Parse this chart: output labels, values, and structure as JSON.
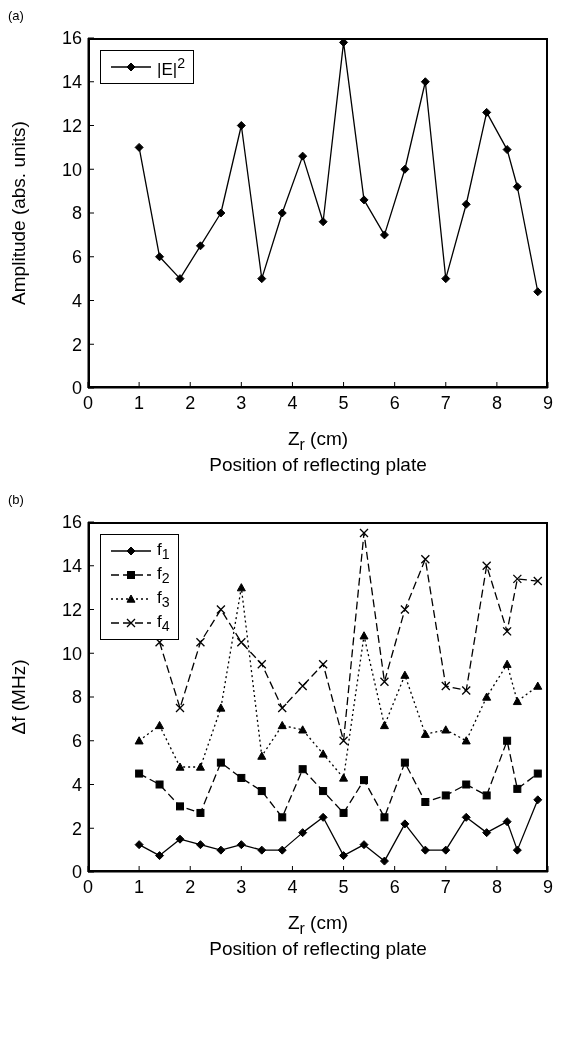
{
  "chart_data": [
    {
      "type": "line",
      "title": "(a)",
      "xlabel": "Z$_{r}$ (cm)",
      "ylabel": "Amplitude (abs. units)",
      "annotations": [
        "Position of reflecting plate"
      ],
      "x": [
        1,
        1.4,
        1.8,
        2.2,
        2.6,
        3,
        3.4,
        3.8,
        4.2,
        4.6,
        5,
        5.4,
        5.8,
        6.2,
        6.6,
        7,
        7.4,
        7.8,
        8.2,
        8.4,
        8.8
      ],
      "xlim": [
        0,
        9
      ],
      "xticks": [
        0,
        1,
        2,
        3,
        4,
        5,
        6,
        7,
        8,
        9
      ],
      "ylim": [
        0,
        16
      ],
      "yticks": [
        0,
        2,
        4,
        6,
        8,
        10,
        12,
        14,
        16
      ],
      "grid": false,
      "legend": "top left",
      "series": [
        {
          "name": "|E|$^{2}$",
          "color": "#000000",
          "marker": "diamond",
          "line_style": "solid",
          "values": [
            11,
            6,
            5,
            6.5,
            8,
            12,
            5,
            8,
            10.6,
            7.6,
            15.8,
            8.6,
            7,
            10,
            14,
            5,
            8.4,
            12.6,
            10.9,
            9.2,
            4.4
          ]
        }
      ]
    },
    {
      "type": "line",
      "title": "(b)",
      "xlabel": "Z$_{r}$ (cm)",
      "ylabel": "Δf (MHz)",
      "annotations": [
        "Position of reflecting plate"
      ],
      "x": [
        1,
        1.4,
        1.8,
        2.2,
        2.6,
        3,
        3.4,
        3.8,
        4.2,
        4.6,
        5,
        5.4,
        5.8,
        6.2,
        6.6,
        7,
        7.4,
        7.8,
        8.2,
        8.4,
        8.8
      ],
      "xlim": [
        0,
        9
      ],
      "xticks": [
        0,
        1,
        2,
        3,
        4,
        5,
        6,
        7,
        8,
        9
      ],
      "ylim": [
        0,
        16
      ],
      "yticks": [
        0,
        2,
        4,
        6,
        8,
        10,
        12,
        14,
        16
      ],
      "grid": false,
      "legend": "top left",
      "series": [
        {
          "name": "f$_{1}$",
          "color": "#000000",
          "marker": "diamond",
          "line_style": "solid",
          "values": [
            1.25,
            0.75,
            1.5,
            1.25,
            1,
            1.25,
            1,
            1,
            1.8,
            2.5,
            0.75,
            1.25,
            0.5,
            2.2,
            1,
            1,
            2.5,
            1.8,
            2.3,
            1,
            3.3
          ]
        },
        {
          "name": "f$_{2}$",
          "color": "#000000",
          "marker": "square",
          "line_style": "dashed",
          "values": [
            4.5,
            4,
            3,
            2.7,
            5,
            4.3,
            3.7,
            2.5,
            4.7,
            3.7,
            2.7,
            4.2,
            2.5,
            5,
            3.2,
            3.5,
            4,
            3.5,
            6,
            3.8,
            4.5
          ]
        },
        {
          "name": "f$_{3}$",
          "color": "#000000",
          "marker": "triangle",
          "line_style": "dotted",
          "values": [
            6,
            6.7,
            4.8,
            4.8,
            7.5,
            13,
            5.3,
            6.7,
            6.5,
            5.4,
            4.3,
            10.8,
            6.7,
            9,
            6.3,
            6.5,
            6,
            8,
            9.5,
            7.8,
            8.5
          ]
        },
        {
          "name": "f$_{4}$",
          "color": "#000000",
          "marker": "cross",
          "line_style": "dashed",
          "values": [
            null,
            10.5,
            7.5,
            10.5,
            12,
            10.5,
            9.5,
            7.5,
            8.5,
            9.5,
            6,
            15.5,
            8.7,
            12,
            14.3,
            8.5,
            8.3,
            14,
            11,
            13.4,
            13.3
          ]
        }
      ]
    }
  ]
}
